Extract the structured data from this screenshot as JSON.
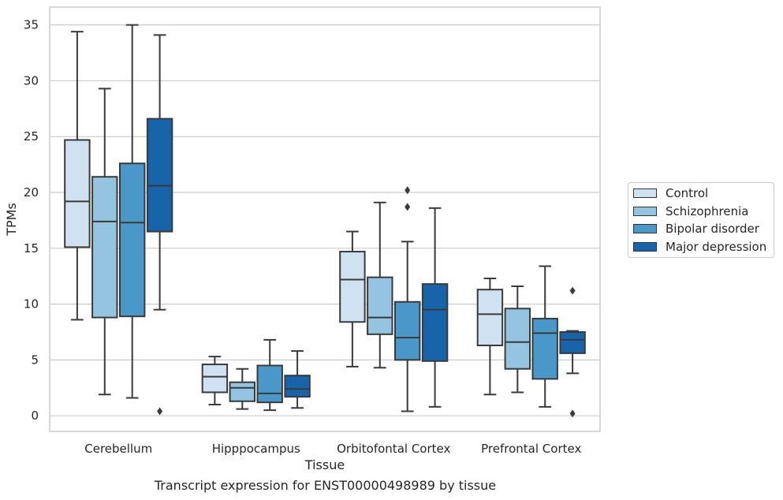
{
  "caption": "Transcript expression for ENST00000498989 by tissue",
  "chart_data": {
    "type": "box",
    "xlabel": "Tissue",
    "ylabel": "TPMs",
    "ylim": [
      -1.4,
      36.6
    ],
    "yticks": [
      0,
      5,
      10,
      15,
      20,
      25,
      30,
      35
    ],
    "grid": "horizontal",
    "legend_position": "right",
    "categories": [
      "Cerebellum",
      "Hipppocampus",
      "Orbitofontal Cortex",
      "Prefrontal Cortex"
    ],
    "series": [
      {
        "name": "Control",
        "color": "#d0e1f2",
        "boxes": [
          {
            "whisker_low": 8.6,
            "q1": 15.1,
            "median": 19.2,
            "q3": 24.7,
            "whisker_high": 34.4,
            "outliers": []
          },
          {
            "whisker_low": 1.0,
            "q1": 2.1,
            "median": 3.5,
            "q3": 4.6,
            "whisker_high": 5.3,
            "outliers": []
          },
          {
            "whisker_low": 4.4,
            "q1": 8.4,
            "median": 12.2,
            "q3": 14.7,
            "whisker_high": 16.5,
            "outliers": []
          },
          {
            "whisker_low": 1.9,
            "q1": 6.3,
            "median": 9.1,
            "q3": 11.3,
            "whisker_high": 12.3,
            "outliers": []
          }
        ]
      },
      {
        "name": "Schizophrenia",
        "color": "#94c4df",
        "boxes": [
          {
            "whisker_low": 1.9,
            "q1": 8.8,
            "median": 17.4,
            "q3": 21.4,
            "whisker_high": 29.3,
            "outliers": []
          },
          {
            "whisker_low": 0.6,
            "q1": 1.3,
            "median": 2.5,
            "q3": 3.0,
            "whisker_high": 4.2,
            "outliers": []
          },
          {
            "whisker_low": 4.3,
            "q1": 7.3,
            "median": 8.8,
            "q3": 12.4,
            "whisker_high": 19.1,
            "outliers": []
          },
          {
            "whisker_low": 2.1,
            "q1": 4.2,
            "median": 6.6,
            "q3": 9.6,
            "whisker_high": 11.6,
            "outliers": []
          }
        ]
      },
      {
        "name": "Bipolar disorder",
        "color": "#4a98c9",
        "boxes": [
          {
            "whisker_low": 1.6,
            "q1": 8.9,
            "median": 17.3,
            "q3": 22.6,
            "whisker_high": 35.0,
            "outliers": []
          },
          {
            "whisker_low": 0.5,
            "q1": 1.2,
            "median": 2.0,
            "q3": 4.5,
            "whisker_high": 6.8,
            "outliers": []
          },
          {
            "whisker_low": 0.4,
            "q1": 5.0,
            "median": 7.0,
            "q3": 10.2,
            "whisker_high": 15.6,
            "outliers": [
              18.7,
              20.2
            ]
          },
          {
            "whisker_low": 0.8,
            "q1": 3.3,
            "median": 7.4,
            "q3": 8.7,
            "whisker_high": 13.4,
            "outliers": []
          }
        ]
      },
      {
        "name": "Major depression",
        "color": "#1764ab",
        "boxes": [
          {
            "whisker_low": 9.5,
            "q1": 16.5,
            "median": 20.6,
            "q3": 26.6,
            "whisker_high": 34.1,
            "outliers": [
              0.4
            ]
          },
          {
            "whisker_low": 0.7,
            "q1": 1.7,
            "median": 2.4,
            "q3": 3.6,
            "whisker_high": 5.8,
            "outliers": []
          },
          {
            "whisker_low": 0.8,
            "q1": 4.9,
            "median": 9.5,
            "q3": 11.8,
            "whisker_high": 18.6,
            "outliers": []
          },
          {
            "whisker_low": 3.8,
            "q1": 5.6,
            "median": 6.8,
            "q3": 7.5,
            "whisker_high": 7.6,
            "outliers": [
              0.2,
              11.2
            ]
          }
        ]
      }
    ]
  }
}
